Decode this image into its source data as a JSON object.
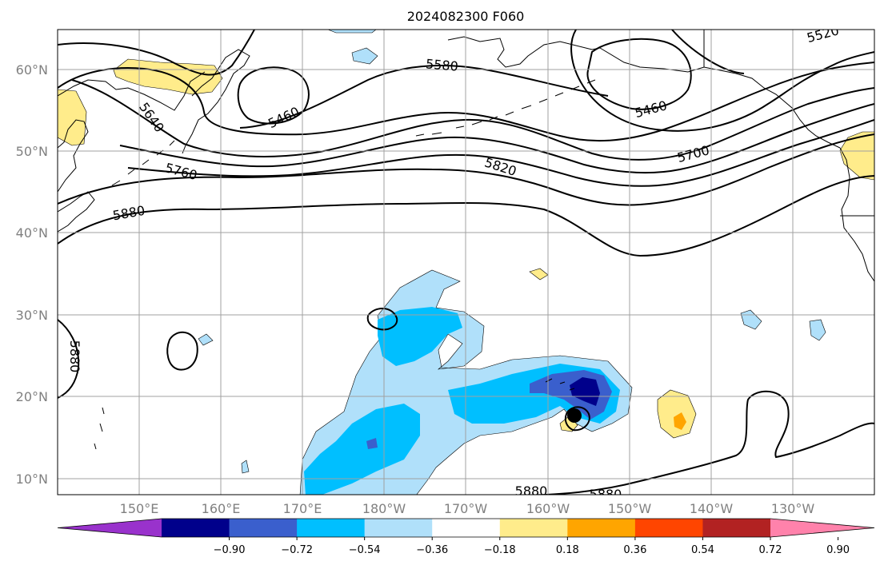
{
  "title": "2024082300 F060",
  "lat_labels": [
    "60°N",
    "50°N",
    "40°N",
    "30°N",
    "20°N",
    "10°N"
  ],
  "lon_labels": [
    "150°E",
    "160°E",
    "170°E",
    "180°W",
    "170°W",
    "160°W",
    "150°W",
    "140°W",
    "130°W"
  ],
  "contour_labels": [
    "5520",
    "5580",
    "5460",
    "5460",
    "5640",
    "5700",
    "5760",
    "5820",
    "5880",
    "5880",
    "5880",
    "5880"
  ],
  "colorbar": {
    "ticks": [
      "−0.90",
      "−0.72",
      "−0.54",
      "−0.36",
      "−0.18",
      "0.18",
      "0.36",
      "0.54",
      "0.72",
      "0.90"
    ],
    "colors": [
      "#9932cc",
      "#00008b",
      "#3a5fcd",
      "#00bfff",
      "#b0e0fa",
      "#ffffff",
      "#ffec8b",
      "#ffa500",
      "#ff4500",
      "#b22222",
      "#ff82ab"
    ]
  }
}
